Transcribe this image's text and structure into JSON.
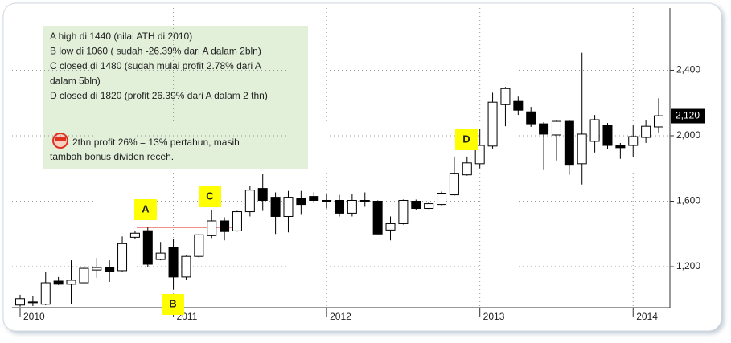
{
  "chart_data": {
    "type": "candlestick",
    "categories": [
      "2010",
      null,
      null,
      null,
      null,
      null,
      null,
      null,
      null,
      null,
      null,
      null,
      "2011",
      null,
      null,
      null,
      null,
      null,
      null,
      null,
      null,
      null,
      null,
      null,
      "2012",
      null,
      null,
      null,
      null,
      null,
      null,
      null,
      null,
      null,
      null,
      null,
      "2013",
      null,
      null,
      null,
      null,
      null,
      null,
      null,
      null,
      null,
      null,
      null,
      "2014",
      null,
      null
    ],
    "open": [
      966,
      980,
      971,
      1112,
      1093,
      1102,
      1180,
      1195,
      1176,
      1380,
      1420,
      1244,
      1317,
      1137,
      1263,
      1390,
      1480,
      1419,
      1536,
      1678,
      1624,
      1507,
      1615,
      1629,
      1605,
      1605,
      1527,
      1600,
      1600,
      1424,
      1463,
      1600,
      1556,
      1580,
      1639,
      1761,
      1829,
      1937,
      2190,
      2210,
      2146,
      2073,
      2005,
      2088,
      1829,
      1966,
      2063,
      1941,
      1941,
      1990,
      2054
    ],
    "high": [
      1029,
      1020,
      1166,
      1137,
      1239,
      1200,
      1254,
      1239,
      1385,
      1420,
      1440,
      1351,
      1371,
      1268,
      1400,
      1546,
      1502,
      1541,
      1692,
      1766,
      1654,
      1663,
      1663,
      1654,
      1644,
      1639,
      1644,
      1654,
      1605,
      1507,
      1610,
      1610,
      1595,
      1659,
      1873,
      1873,
      2044,
      2263,
      2298,
      2239,
      2176,
      2083,
      2093,
      2093,
      2507,
      2127,
      2078,
      1956,
      2068,
      2093,
      2229
    ],
    "low": [
      956,
      960,
      965,
      1088,
      971,
      1093,
      1132,
      1107,
      1171,
      1371,
      1200,
      1239,
      1060,
      1122,
      1254,
      1375,
      1361,
      1415,
      1507,
      1541,
      1400,
      1410,
      1517,
      1590,
      1556,
      1507,
      1507,
      1566,
      1400,
      1361,
      1458,
      1546,
      1551,
      1575,
      1634,
      1756,
      1800,
      1922,
      2058,
      2127,
      2054,
      1790,
      1849,
      1761,
      1702,
      1898,
      1917,
      1859,
      1868,
      1956,
      2020
    ],
    "close": [
      1005,
      985,
      1102,
      1093,
      1117,
      1190,
      1195,
      1171,
      1341,
      1405,
      1215,
      1283,
      1137,
      1263,
      1395,
      1480,
      1415,
      1536,
      1668,
      1605,
      1507,
      1624,
      1580,
      1605,
      1600,
      1527,
      1605,
      1605,
      1400,
      1463,
      1605,
      1556,
      1585,
      1649,
      1771,
      1834,
      1941,
      2205,
      2288,
      2156,
      2073,
      2010,
      2088,
      1820,
      2010,
      2098,
      1941,
      1927,
      1995,
      2058,
      2122
    ],
    "up_color": "#ffffff",
    "down_color": "#000000",
    "ylim": [
      950,
      2780
    ],
    "yticks": [
      {
        "value": 1200,
        "label": "1,200"
      },
      {
        "value": 1600,
        "label": "1,600"
      },
      {
        "value": 2000,
        "label": "2,000"
      },
      {
        "value": 2400,
        "label": "2,400"
      }
    ],
    "grid": true,
    "price_tag": {
      "value": 2120,
      "label": "2,120"
    },
    "note_lines": [
      "A high di 1440 (nilai ATH di 2010)",
      "B low di 1060 ( sudah -26.39% dari A dalam 2bln)",
      "C closed di 1480 (sudah mulai profit 2.78% dari A",
      "dalam 5bln)",
      "D closed di 1820 (profit 26.39% dari A dalam 2 thn)"
    ],
    "note_footer": [
      "2thn profit 26% = 13% pertahun, masih",
      "tambah bonus dividen receh."
    ],
    "markers": [
      "A",
      "B",
      "C",
      "D"
    ]
  }
}
